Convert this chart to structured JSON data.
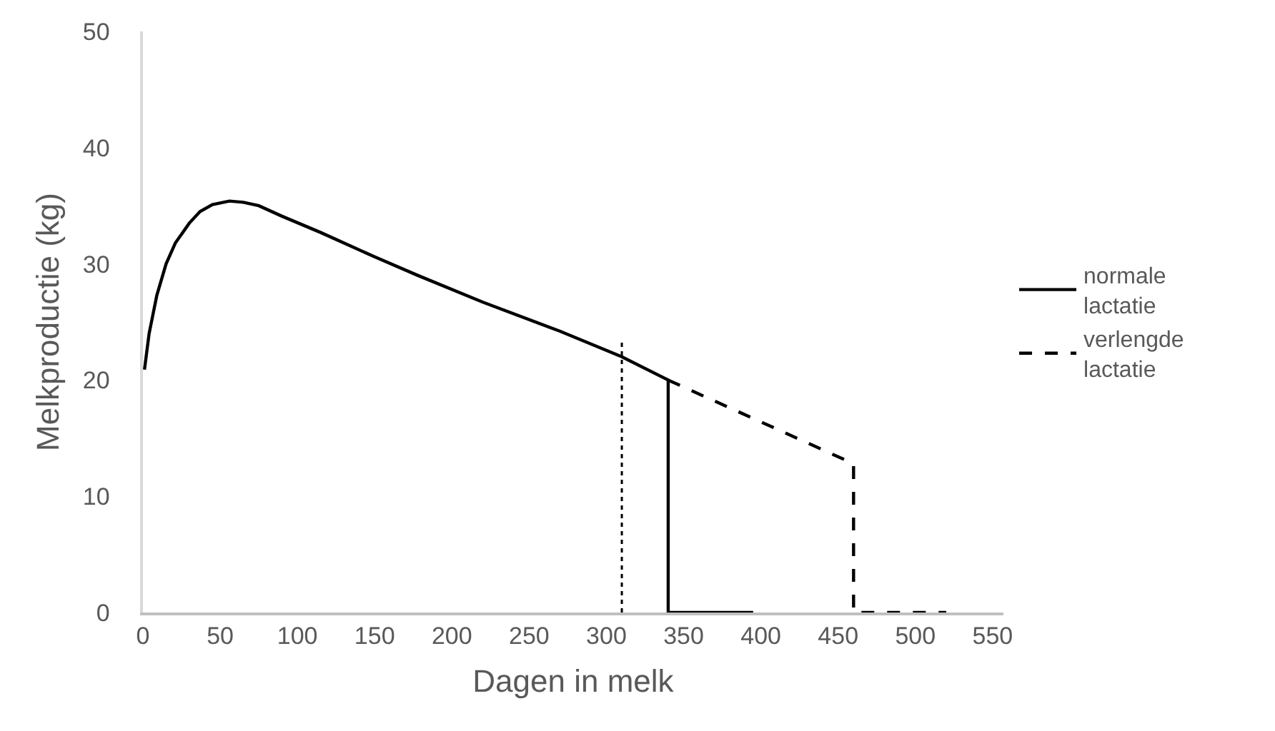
{
  "chart_data": {
    "type": "line",
    "xlabel": "Dagen in melk",
    "ylabel": "Melkproductie (kg)",
    "xlim": [
      0,
      557
    ],
    "xticks": [
      0,
      50,
      100,
      150,
      200,
      250,
      300,
      350,
      400,
      450,
      500,
      550
    ],
    "ylim": [
      0,
      50
    ],
    "yticks": [
      0,
      10,
      20,
      30,
      40,
      50
    ],
    "grid": false,
    "legend": "right",
    "marker": "none",
    "series": [
      {
        "name": "normale lactatie",
        "color": "#000000",
        "line_style": "solid",
        "x": [
          1,
          4,
          9,
          15,
          21,
          30,
          37,
          45,
          56,
          65,
          75,
          90,
          115,
          150,
          178,
          220,
          270,
          310,
          340,
          340,
          395
        ],
        "values": [
          20.9,
          24.0,
          27.3,
          30.0,
          31.8,
          33.5,
          34.5,
          35.1,
          35.4,
          35.3,
          35.0,
          34.1,
          32.7,
          30.6,
          29.0,
          26.7,
          24.2,
          22.0,
          20.0,
          0,
          0
        ]
      },
      {
        "name": "verlengde lactatie",
        "color": "#000000",
        "line_style": "dashed",
        "x": [
          340,
          460,
          460,
          520
        ],
        "values": [
          20.0,
          12.8,
          0,
          0
        ]
      },
      {
        "color": "#000000",
        "line_style": "dotted",
        "x": [
          310,
          310
        ],
        "values": [
          0,
          23.3
        ]
      }
    ]
  }
}
